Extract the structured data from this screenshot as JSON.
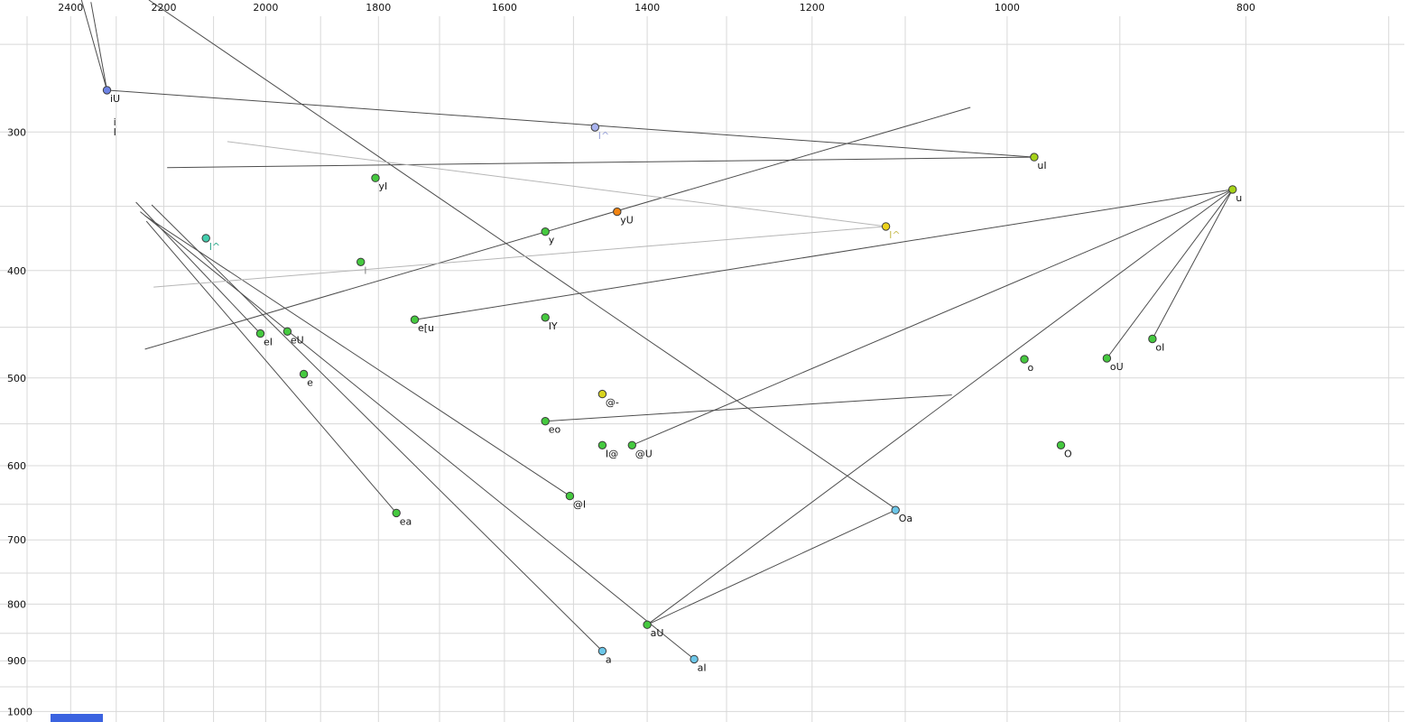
{
  "chart_data": {
    "type": "scatter",
    "title": "",
    "description": "F1/F2 vowel formant plot (X-SAMPA labels), log-scaled reversed F2 on x-axis, log-scaled F1 on y-axis, diphthong trajectory lines",
    "x_axis": {
      "label": "",
      "ticks": [
        2400,
        2200,
        2000,
        1800,
        1600,
        1400,
        1200,
        1000,
        800
      ],
      "range": [
        2564,
        676
      ],
      "scale": "log",
      "reversed": true,
      "grid_min": 700,
      "grid_max": 2500,
      "grid_step": 100
    },
    "y_axis": {
      "label": "",
      "ticks": [
        300,
        400,
        500,
        600,
        700,
        800,
        900,
        1000
      ],
      "range": [
        228,
        1022
      ],
      "scale": "log",
      "grid_min": 250,
      "grid_max": 1000,
      "grid_step": 50
    },
    "colors": {
      "grid": "#d8d8d8",
      "line_dark": "#4d4d4d",
      "line_light": "#b6b6b6",
      "point_stroke": "#3a3a3a",
      "label": "#141414",
      "tick_text": "#111111"
    },
    "points": [
      {
        "label": "iU",
        "f2": 2320,
        "f1": 275,
        "color": "#6d83e4"
      },
      {
        "label": "I^",
        "f2": 1470,
        "f1": 297,
        "color": "#a9b3ef",
        "label_color": "#9aa3d8"
      },
      {
        "label": "uI",
        "f2": 975,
        "f1": 316,
        "color": "#a6d319"
      },
      {
        "label": "u",
        "f2": 810,
        "f1": 338,
        "color": "#a6d319"
      },
      {
        "label": "yI",
        "f2": 1805,
        "f1": 330,
        "color": "#45c93f"
      },
      {
        "label": "yU",
        "f2": 1440,
        "f1": 354,
        "color": "#f28411"
      },
      {
        "label": "y",
        "f2": 1540,
        "f1": 369,
        "color": "#45c93f"
      },
      {
        "label": "I^",
        "f2": 1120,
        "f1": 365,
        "color": "#edd31b",
        "label_color": "#c8bd55"
      },
      {
        "label": "I^",
        "f2": 2115,
        "f1": 374,
        "color": "#43cfae",
        "label_color": "#2fa98c"
      },
      {
        "label": "I",
        "f2": 1830,
        "f1": 393,
        "color": "#45c93f",
        "label_color": "#8a8a8a"
      },
      {
        "label": "e[u",
        "f2": 1740,
        "f1": 443,
        "color": "#45c93f"
      },
      {
        "label": "IY",
        "f2": 1540,
        "f1": 441,
        "color": "#45c93f"
      },
      {
        "label": "eI",
        "f2": 2010,
        "f1": 456,
        "color": "#45c93f"
      },
      {
        "label": "eU",
        "f2": 1960,
        "f1": 454,
        "color": "#45c93f"
      },
      {
        "label": "e",
        "f2": 1930,
        "f1": 496,
        "color": "#45c93f"
      },
      {
        "label": "oI",
        "f2": 873,
        "f1": 461,
        "color": "#45c93f"
      },
      {
        "label": "o",
        "f2": 984,
        "f1": 481,
        "color": "#45c93f"
      },
      {
        "label": "oU",
        "f2": 911,
        "f1": 480,
        "color": "#45c93f"
      },
      {
        "label": "@-",
        "f2": 1460,
        "f1": 517,
        "color": "#d8d41e"
      },
      {
        "label": "eo",
        "f2": 1540,
        "f1": 547,
        "color": "#45c93f"
      },
      {
        "label": "I@",
        "f2": 1460,
        "f1": 575,
        "color": "#45c93f"
      },
      {
        "label": "@U",
        "f2": 1420,
        "f1": 575,
        "color": "#45c93f"
      },
      {
        "label": "O",
        "f2": 951,
        "f1": 575,
        "color": "#45c93f"
      },
      {
        "label": "@I",
        "f2": 1505,
        "f1": 639,
        "color": "#45c93f"
      },
      {
        "label": "ea",
        "f2": 1770,
        "f1": 662,
        "color": "#45c93f"
      },
      {
        "label": "Oa",
        "f2": 1110,
        "f1": 658,
        "color": "#6cc6e8"
      },
      {
        "label": "aU",
        "f2": 1400,
        "f1": 835,
        "color": "#45c93f"
      },
      {
        "label": "a",
        "f2": 1460,
        "f1": 882,
        "color": "#6cc6e8"
      },
      {
        "label": "aI",
        "f2": 1340,
        "f1": 897,
        "color": "#6cc6e8"
      }
    ],
    "annotations": [
      {
        "text": "i",
        "f2": 2310,
        "f1": 296
      },
      {
        "text": "I",
        "f2": 2310,
        "f1": 302
      }
    ],
    "segments": [
      {
        "f2a": 2376,
        "f1a": 228,
        "f2b": 2320,
        "f1b": 275,
        "shade": "dark"
      },
      {
        "f2a": 2355,
        "f1a": 229,
        "f2b": 2320,
        "f1b": 275,
        "shade": "dark"
      },
      {
        "f2a": 2320,
        "f1a": 275,
        "f2b": 975,
        "f1b": 316,
        "shade": "dark"
      },
      {
        "f2a": 2193,
        "f1a": 323,
        "f2b": 975,
        "f1b": 316,
        "shade": "dark"
      },
      {
        "f2a": 2239,
        "f1a": 471,
        "f2b": 1035,
        "f1b": 285,
        "shade": "dark"
      },
      {
        "f2a": 2231,
        "f1a": 228,
        "f2b": 1108,
        "f1b": 658,
        "shade": "dark"
      },
      {
        "f2a": 2249,
        "f1a": 354,
        "f2b": 1340,
        "f1b": 897,
        "shade": "dark"
      },
      {
        "f2a": 2225,
        "f1a": 349,
        "f2b": 1460,
        "f1b": 882,
        "shade": "dark"
      },
      {
        "f2a": 2239,
        "f1a": 357,
        "f2b": 1505,
        "f1b": 639,
        "shade": "dark"
      },
      {
        "f2a": 2258,
        "f1a": 347,
        "f2b": 2010,
        "f1b": 456,
        "shade": "dark"
      },
      {
        "f2a": 2236,
        "f1a": 361,
        "f2b": 1770,
        "f1b": 662,
        "shade": "dark"
      },
      {
        "f2a": 1400,
        "f1a": 835,
        "f2b": 810,
        "f1b": 338,
        "shade": "dark"
      },
      {
        "f2a": 1110,
        "f1a": 658,
        "f2b": 1400,
        "f1b": 835,
        "shade": "dark"
      },
      {
        "f2a": 810,
        "f1a": 338,
        "f2b": 873,
        "f1b": 461,
        "shade": "dark"
      },
      {
        "f2a": 810,
        "f1a": 338,
        "f2b": 911,
        "f1b": 480,
        "shade": "dark"
      },
      {
        "f2a": 1540,
        "f1a": 547,
        "f2b": 1053,
        "f1b": 518,
        "shade": "dark"
      },
      {
        "f2a": 1420,
        "f1a": 575,
        "f2b": 810,
        "f1b": 338,
        "shade": "dark"
      },
      {
        "f2a": 1740,
        "f1a": 443,
        "f2b": 810,
        "f1b": 338,
        "shade": "dark"
      },
      {
        "f2a": 2073,
        "f1a": 306,
        "f2b": 1120,
        "f1b": 365,
        "shade": "light"
      },
      {
        "f2a": 2221,
        "f1a": 414,
        "f2b": 1120,
        "f1b": 365,
        "shade": "light"
      }
    ]
  },
  "decorations": {
    "bottom_bar_color": "#3b63e0"
  }
}
